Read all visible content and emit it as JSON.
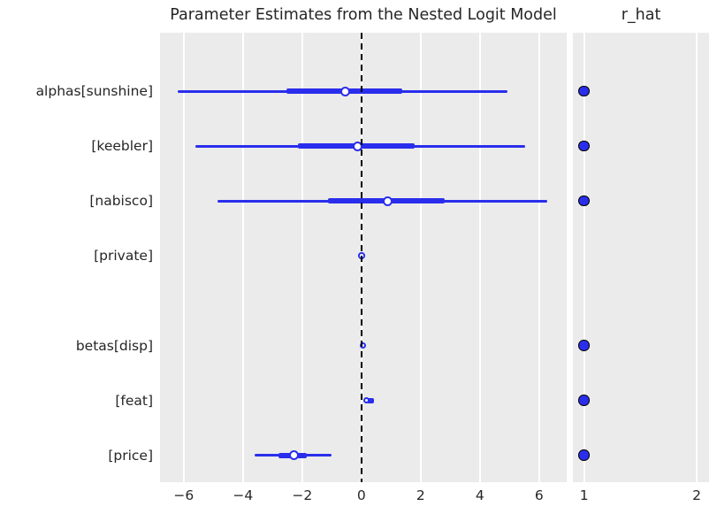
{
  "colors": {
    "accent_blue": "#2a2eec",
    "panel_background": "#ebebeb",
    "gridline": "#ffffff",
    "text": "#262626",
    "reference_line": "#000000",
    "marker_fill": "#ffffff",
    "rhat_dot_edge": "#000000"
  },
  "chart_data": {
    "type": "forest",
    "title": "Parameter Estimates from the Nested Logit Model",
    "rhat_title": "r_hat",
    "legend": null,
    "grid": "vertical-white-gridlines",
    "rows": [
      {
        "label": "alphas[sunshine]",
        "group_slot": 0,
        "hdi": [
          -6.2,
          4.93
        ],
        "quartile": [
          -2.54,
          1.37
        ],
        "median": -0.54,
        "r_hat": 1.0
      },
      {
        "label": "[keebler]",
        "group_slot": 1,
        "hdi": [
          -5.61,
          5.52
        ],
        "quartile": [
          -2.15,
          1.79
        ],
        "median": -0.12,
        "r_hat": 1.0
      },
      {
        "label": "[nabisco]",
        "group_slot": 2,
        "hdi": [
          -4.87,
          6.27
        ],
        "quartile": [
          -1.13,
          2.81
        ],
        "median": 0.9,
        "r_hat": 1.0
      },
      {
        "label": "[private]",
        "group_slot": 3,
        "hdi": [
          0,
          0
        ],
        "quartile": [
          0,
          0
        ],
        "median": 0.0,
        "r_hat": null
      },
      {
        "label": "betas[disp]",
        "group_slot": 4.64,
        "hdi": [
          0.0,
          0.1
        ],
        "quartile": [
          0.02,
          0.08
        ],
        "median": 0.05,
        "r_hat": 1.0
      },
      {
        "label": "[feat]",
        "group_slot": 5.64,
        "hdi": [
          0.08,
          0.42
        ],
        "quartile": [
          0.17,
          0.42
        ],
        "median": 0.17,
        "r_hat": 1.0
      },
      {
        "label": "[price]",
        "group_slot": 6.64,
        "hdi": [
          -3.61,
          -1.01
        ],
        "quartile": [
          -2.81,
          -1.85
        ],
        "median": -2.27,
        "r_hat": 1.0
      }
    ],
    "x_axis": {
      "lim": [
        -6.8,
        6.93
      ],
      "ticks": [
        -6,
        -4,
        -2,
        0,
        2,
        4,
        6
      ],
      "reference_line": 0
    },
    "rhat_axis": {
      "lim": [
        0.9,
        2.11
      ],
      "ticks": [
        1,
        2
      ]
    }
  }
}
